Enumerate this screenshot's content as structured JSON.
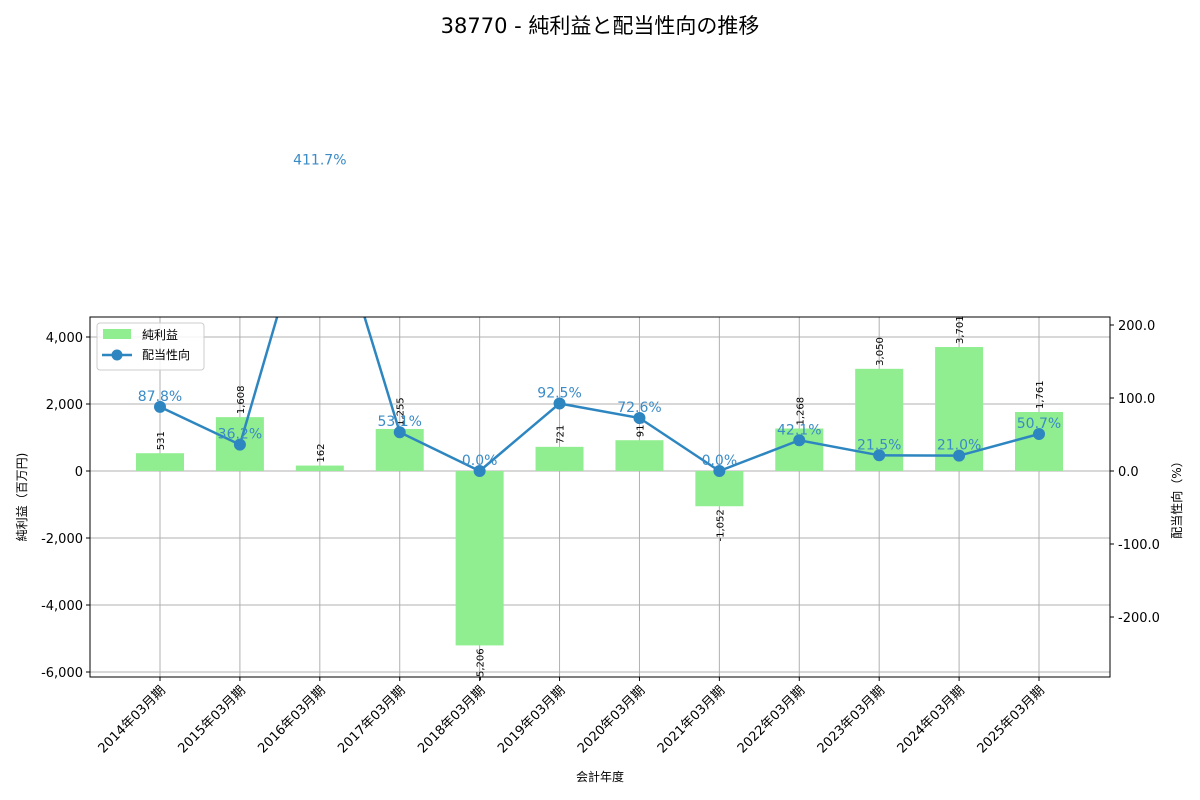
{
  "chart_data": {
    "type": "bar+line",
    "title": "38770 - 純利益と配当性向の推移",
    "xlabel": "会計年度",
    "ylabel_left": "純利益（百万円)",
    "ylabel_right": "配当性向（%）",
    "categories": [
      "2014年03月期",
      "2015年03月期",
      "2016年03月期",
      "2017年03月期",
      "2018年03月期",
      "2019年03月期",
      "2020年03月期",
      "2021年03月期",
      "2022年03月期",
      "2023年03月期",
      "2024年03月期",
      "2025年03月期"
    ],
    "series": [
      {
        "name": "純利益",
        "type": "bar",
        "axis": "left",
        "color": "#90ee90",
        "values": [
          531,
          1608,
          162,
          1255,
          -5206,
          721,
          919,
          -1052,
          1268,
          3050,
          3701,
          1761
        ],
        "labels": [
          "531",
          "1,608",
          "162",
          "1,255",
          "-5,206",
          "721",
          "919",
          "-1,052",
          "1,268",
          "3,050",
          "3,701",
          "1,761"
        ]
      },
      {
        "name": "配当性向",
        "type": "line",
        "axis": "right",
        "color": "#2e86c1",
        "values": [
          87.8,
          36.2,
          411.7,
          53.1,
          0.0,
          92.5,
          72.6,
          0.0,
          42.1,
          21.5,
          21.0,
          50.7
        ],
        "labels": [
          "87.8%",
          "36.2%",
          "411.7%",
          "53.1%",
          "0.0%",
          "92.5%",
          "72.6%",
          "0.0%",
          "42.1%",
          "21.5%",
          "21.0%",
          "50.7%"
        ]
      }
    ],
    "ylim_left": [
      -6100,
      4600
    ],
    "yticks_left": [
      "4,000",
      "2,000",
      "0",
      "-2,000",
      "-4,000",
      "-6,000"
    ],
    "yticks_left_values": [
      4000,
      2000,
      0,
      -2000,
      -4000,
      -6000
    ],
    "ylim_right": [
      -282,
      214
    ],
    "yticks_right": [
      "200.0",
      "100.0",
      "0.0",
      "-100.0",
      "-200.0"
    ],
    "yticks_right_values": [
      200,
      100,
      0,
      -100,
      -200
    ],
    "grid": true,
    "legend_position": "upper left"
  }
}
